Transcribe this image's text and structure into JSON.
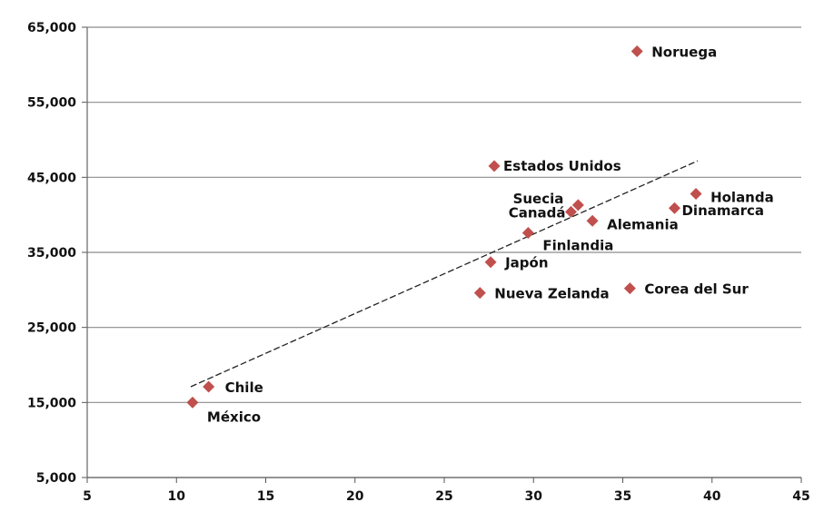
{
  "chart_data": {
    "type": "scatter",
    "title": "",
    "xlabel": "",
    "ylabel": "",
    "xlim": [
      5,
      45
    ],
    "ylim": [
      5000,
      65000
    ],
    "xticks": [
      "5",
      "10",
      "15",
      "20",
      "25",
      "30",
      "35",
      "40",
      "45"
    ],
    "yticks": [
      "5,000",
      "15,000",
      "25,000",
      "35,000",
      "45,000",
      "55,000",
      "65,000"
    ],
    "grid": "horizontal",
    "marker_color": "#c0504d",
    "trendline": {
      "style": "dashed",
      "x": [
        10.8,
        39.2
      ],
      "y": [
        17100,
        47200
      ]
    },
    "points": [
      {
        "label": "Noruega",
        "x": 35.8,
        "y": 61800
      },
      {
        "label": "Estados Unidos",
        "x": 27.8,
        "y": 46500
      },
      {
        "label": "Holanda",
        "x": 39.1,
        "y": 42800
      },
      {
        "label": "Suecia",
        "x": 32.5,
        "y": 41300
      },
      {
        "label": "Canadá",
        "x": 32.1,
        "y": 40400
      },
      {
        "label": "Dinamarca",
        "x": 37.9,
        "y": 40900
      },
      {
        "label": "Alemania",
        "x": 33.3,
        "y": 39200
      },
      {
        "label": "Finlandia",
        "x": 29.7,
        "y": 37600
      },
      {
        "label": "Japón",
        "x": 27.6,
        "y": 33700
      },
      {
        "label": "Nueva Zelanda",
        "x": 27.0,
        "y": 29600
      },
      {
        "label": "Corea del Sur",
        "x": 35.4,
        "y": 30200
      },
      {
        "label": "Chile",
        "x": 11.8,
        "y": 17100
      },
      {
        "label": "México",
        "x": 10.9,
        "y": 15000
      }
    ]
  }
}
